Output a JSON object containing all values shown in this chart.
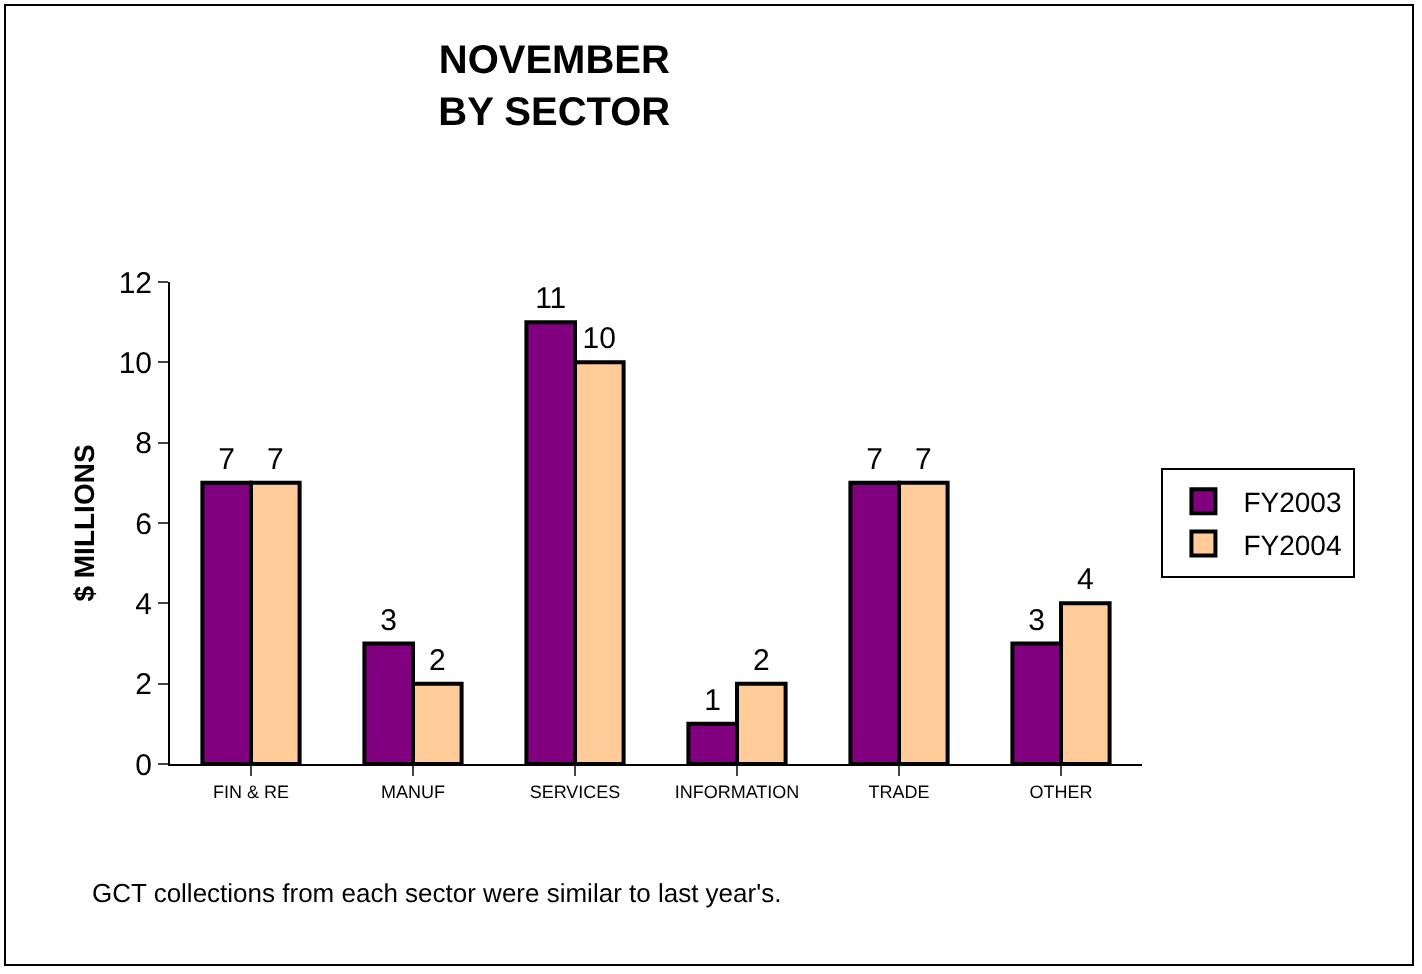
{
  "chart_data": {
    "type": "bar",
    "title": "NOVEMBER\nBY SECTOR",
    "ylabel": "$ MILLIONS",
    "categories": [
      "FIN & RE",
      "MANUF",
      "SERVICES",
      "INFORMATION",
      "TRADE",
      "OTHER"
    ],
    "series": [
      {
        "name": "FY2003",
        "color": "#800080",
        "values": [
          7,
          3,
          11,
          1,
          7,
          3
        ]
      },
      {
        "name": "FY2004",
        "color": "#ffcc99",
        "values": [
          7,
          2,
          10,
          2,
          7,
          4
        ]
      }
    ],
    "ylim": [
      0,
      12
    ],
    "yticks": [
      0,
      2,
      4,
      6,
      8,
      10,
      12
    ],
    "grid": false,
    "legend": "right",
    "data_labels": true,
    "annotations": [
      "GCT collections from each sector were similar to last year's."
    ]
  }
}
